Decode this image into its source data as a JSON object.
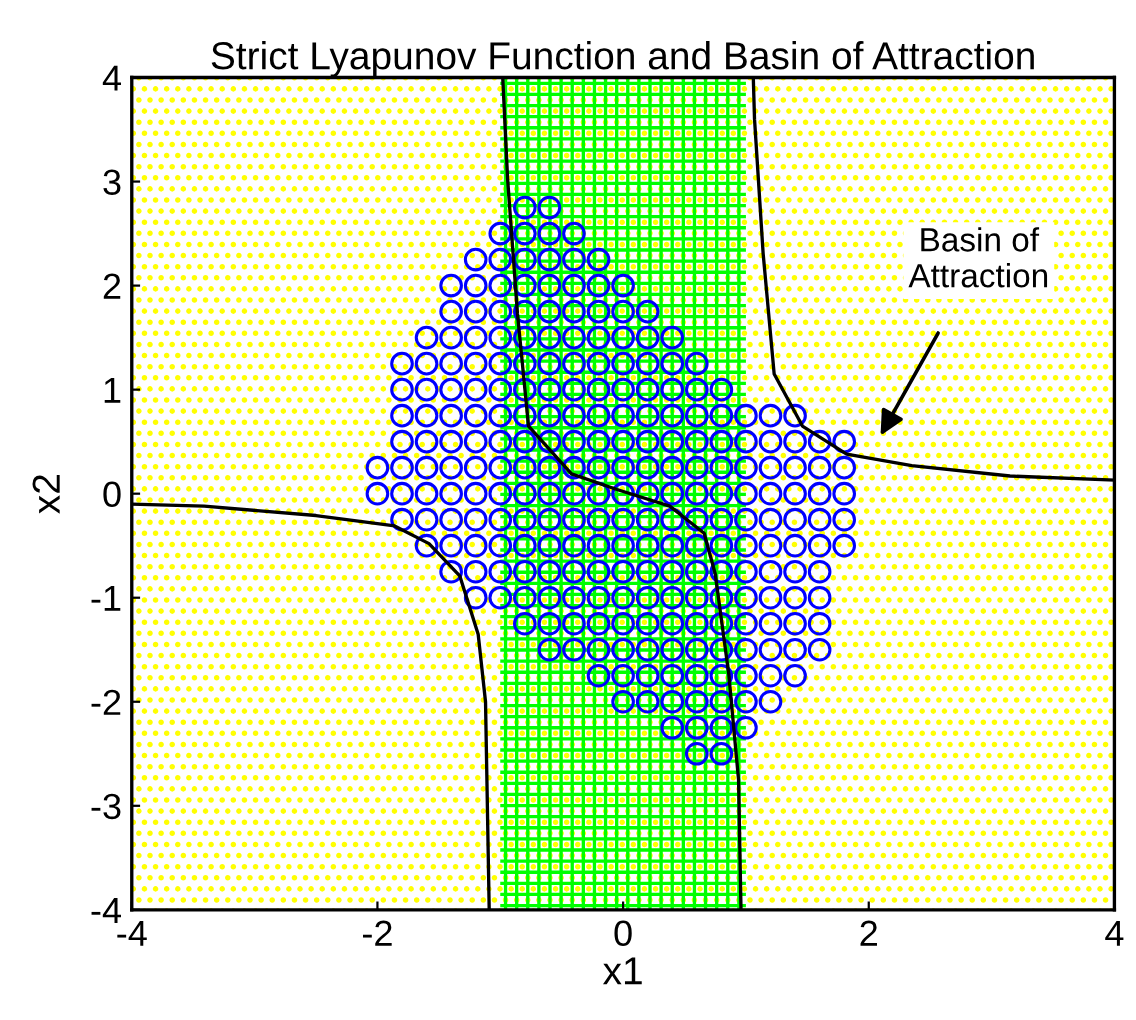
{
  "chart_data": {
    "type": "scatter",
    "title": "Strict Lyapunov Function and Basin of Attraction",
    "xlabel": "x1",
    "ylabel": "x2",
    "xlim": [
      -4,
      4
    ],
    "ylim": [
      -4,
      4
    ],
    "xticks": [
      -4,
      -2,
      0,
      2,
      4
    ],
    "yticks": [
      -4,
      -3,
      -2,
      -1,
      0,
      1,
      2,
      3,
      4
    ],
    "grid": false,
    "legend": false,
    "bands": [
      {
        "axis": "x",
        "from": -4,
        "to": 4,
        "color": "#ffff00"
      },
      {
        "axis": "x",
        "from": -1,
        "to": 1,
        "color": "#00ff00"
      }
    ],
    "annotations": [
      "Basin of\nAttraction"
    ],
    "series": [
      {
        "type": "scatter",
        "color": "#0000ff",
        "marker": "circle",
        "x": [
          -2,
          -2,
          -1.8,
          -1.8,
          -1.8,
          -1.8,
          -1.8,
          -1.8,
          -1.8,
          -1.6,
          -1.6,
          -1.6,
          -1.6,
          -1.6,
          -1.6,
          -1.6,
          -1.6,
          -1.6,
          -1.4,
          -1.4,
          -1.4,
          -1.4,
          -1.4,
          -1.4,
          -1.4,
          -1.4,
          -1.4,
          -1.4,
          -1.4,
          -1.4,
          -1.2,
          -1.2,
          -1.2,
          -1.2,
          -1.2,
          -1.2,
          -1.2,
          -1.2,
          -1.2,
          -1.2,
          -1.2,
          -1.2,
          -1.2,
          -1.2,
          -1,
          -1,
          -1,
          -1,
          -1,
          -1,
          -1,
          -1,
          -1,
          -1,
          -1,
          -1,
          -1,
          -1,
          -1,
          -0.8,
          -0.8,
          -0.8,
          -0.8,
          -0.8,
          -0.8,
          -0.8,
          -0.8,
          -0.8,
          -0.8,
          -0.8,
          -0.8,
          -0.8,
          -0.8,
          -0.8,
          -0.8,
          -0.8,
          -0.6,
          -0.6,
          -0.6,
          -0.6,
          -0.6,
          -0.6,
          -0.6,
          -0.6,
          -0.6,
          -0.6,
          -0.6,
          -0.6,
          -0.6,
          -0.6,
          -0.6,
          -0.6,
          -0.6,
          -0.6,
          -0.4,
          -0.4,
          -0.4,
          -0.4,
          -0.4,
          -0.4,
          -0.4,
          -0.4,
          -0.4,
          -0.4,
          -0.4,
          -0.4,
          -0.4,
          -0.4,
          -0.4,
          -0.4,
          -0.4,
          -0.2,
          -0.2,
          -0.2,
          -0.2,
          -0.2,
          -0.2,
          -0.2,
          -0.2,
          -0.2,
          -0.2,
          -0.2,
          -0.2,
          -0.2,
          -0.2,
          -0.2,
          -0.2,
          -0.2,
          0,
          0,
          0,
          0,
          0,
          0,
          0,
          0,
          0,
          0,
          0,
          0,
          0,
          0,
          0,
          0,
          0,
          0.2,
          0.2,
          0.2,
          0.2,
          0.2,
          0.2,
          0.2,
          0.2,
          0.2,
          0.2,
          0.2,
          0.2,
          0.2,
          0.2,
          0.2,
          0.2,
          0.4,
          0.4,
          0.4,
          0.4,
          0.4,
          0.4,
          0.4,
          0.4,
          0.4,
          0.4,
          0.4,
          0.4,
          0.4,
          0.4,
          0.4,
          0.4,
          0.6,
          0.6,
          0.6,
          0.6,
          0.6,
          0.6,
          0.6,
          0.6,
          0.6,
          0.6,
          0.6,
          0.6,
          0.6,
          0.6,
          0.6,
          0.6,
          0.8,
          0.8,
          0.8,
          0.8,
          0.8,
          0.8,
          0.8,
          0.8,
          0.8,
          0.8,
          0.8,
          0.8,
          0.8,
          0.8,
          0.8,
          1,
          1,
          1,
          1,
          1,
          1,
          1,
          1,
          1,
          1,
          1,
          1,
          1,
          1.2,
          1.2,
          1.2,
          1.2,
          1.2,
          1.2,
          1.2,
          1.2,
          1.2,
          1.2,
          1.2,
          1.2,
          1.4,
          1.4,
          1.4,
          1.4,
          1.4,
          1.4,
          1.4,
          1.4,
          1.4,
          1.4,
          1.4,
          1.6,
          1.6,
          1.6,
          1.6,
          1.6,
          1.6,
          1.6,
          1.6,
          1.6,
          1.8,
          1.8,
          1.8,
          1.8,
          1.8
        ],
        "values": [
          0,
          0.25,
          -0.25,
          0,
          0.25,
          0.5,
          0.75,
          1,
          1.25,
          -0.5,
          -0.25,
          0,
          0.25,
          0.5,
          0.75,
          1,
          1.25,
          1.5,
          -0.75,
          -0.5,
          -0.25,
          0,
          0.25,
          0.5,
          0.75,
          1,
          1.25,
          1.5,
          1.75,
          2,
          -1,
          -0.75,
          -0.5,
          -0.25,
          0,
          0.25,
          0.5,
          0.75,
          1,
          1.25,
          1.5,
          1.75,
          2,
          2.25,
          -1,
          -0.75,
          -0.5,
          -0.25,
          0,
          0.25,
          0.5,
          0.75,
          1,
          1.25,
          1.5,
          1.75,
          2,
          2.25,
          2.5,
          -1.25,
          -1,
          -0.75,
          -0.5,
          -0.25,
          0,
          0.25,
          0.5,
          0.75,
          1,
          1.25,
          1.5,
          1.75,
          2,
          2.25,
          2.5,
          2.75,
          -1.5,
          -1.25,
          -1,
          -0.75,
          -0.5,
          -0.25,
          0,
          0.25,
          0.5,
          0.75,
          1,
          1.25,
          1.5,
          1.75,
          2,
          2.25,
          2.5,
          2.75,
          -1.5,
          -1.25,
          -1,
          -0.75,
          -0.5,
          -0.25,
          0,
          0.25,
          0.5,
          0.75,
          1,
          1.25,
          1.5,
          1.75,
          2,
          2.25,
          2.5,
          -1.75,
          -1.5,
          -1.25,
          -1,
          -0.75,
          -0.5,
          -0.25,
          0,
          0.25,
          0.5,
          0.75,
          1,
          1.25,
          1.5,
          1.75,
          2,
          2.25,
          -2,
          -1.75,
          -1.5,
          -1.25,
          -1,
          -0.75,
          -0.5,
          -0.25,
          0,
          0.25,
          0.5,
          0.75,
          1,
          1.25,
          1.5,
          1.75,
          2,
          -2,
          -1.75,
          -1.5,
          -1.25,
          -1,
          -0.75,
          -0.5,
          -0.25,
          0,
          0.25,
          0.5,
          0.75,
          1,
          1.25,
          1.5,
          1.75,
          -2.25,
          -2,
          -1.75,
          -1.5,
          -1.25,
          -1,
          -0.75,
          -0.5,
          -0.25,
          0,
          0.25,
          0.5,
          0.75,
          1,
          1.25,
          1.5,
          -2.5,
          -2.25,
          -2,
          -1.75,
          -1.5,
          -1.25,
          -1,
          -0.75,
          -0.5,
          -0.25,
          0,
          0.25,
          0.5,
          0.75,
          1,
          1.25,
          -2.5,
          -2.25,
          -2,
          -1.75,
          -1.5,
          -1.25,
          -1,
          -0.75,
          -0.5,
          -0.25,
          0,
          0.25,
          0.5,
          0.75,
          1,
          -2.25,
          -2,
          -1.75,
          -1.5,
          -1.25,
          -1,
          -0.75,
          -0.5,
          -0.25,
          0,
          0.25,
          0.5,
          0.75,
          -2,
          -1.75,
          -1.5,
          -1.25,
          -1,
          -0.75,
          -0.5,
          -0.25,
          0,
          0.25,
          0.5,
          0.75,
          -1.75,
          -1.5,
          -1.25,
          -1,
          -0.75,
          -0.5,
          -0.25,
          0,
          0.25,
          0.5,
          0.75,
          -1.5,
          -1.25,
          -1,
          -0.75,
          -0.5,
          -0.25,
          0,
          0.25,
          0.5,
          -0.5,
          -0.25,
          0,
          0.25,
          0.5
        ]
      },
      {
        "type": "line",
        "color": "#000000",
        "marker": "none",
        "line_style": "solid",
        "x": [
          -4,
          -3.41,
          -2.5,
          -1.86,
          -1.58,
          -1.33,
          -1.18,
          -1.12,
          -1.09
        ],
        "values": [
          -0.1,
          -0.12,
          -0.21,
          -0.31,
          -0.48,
          -0.79,
          -1.35,
          -2.0,
          -4
        ]
      },
      {
        "type": "line",
        "color": "#000000",
        "marker": "none",
        "line_style": "solid",
        "x": [
          -0.98,
          -0.94,
          -0.86,
          -0.77,
          -0.42,
          -0.05,
          0.38,
          0.66,
          0.75,
          0.86,
          0.94,
          0.96
        ],
        "values": [
          4,
          3.02,
          1.73,
          0.65,
          0.19,
          0.04,
          -0.12,
          -0.38,
          -0.77,
          -1.73,
          -2.75,
          -4
        ]
      },
      {
        "type": "line",
        "color": "#000000",
        "marker": "none",
        "line_style": "solid",
        "x": [
          1.06,
          1.07,
          1.14,
          1.23,
          1.46,
          1.82,
          2.35,
          3.15,
          4
        ],
        "values": [
          4,
          3.6,
          2.31,
          1.15,
          0.65,
          0.38,
          0.27,
          0.17,
          0.13
        ]
      }
    ]
  }
}
